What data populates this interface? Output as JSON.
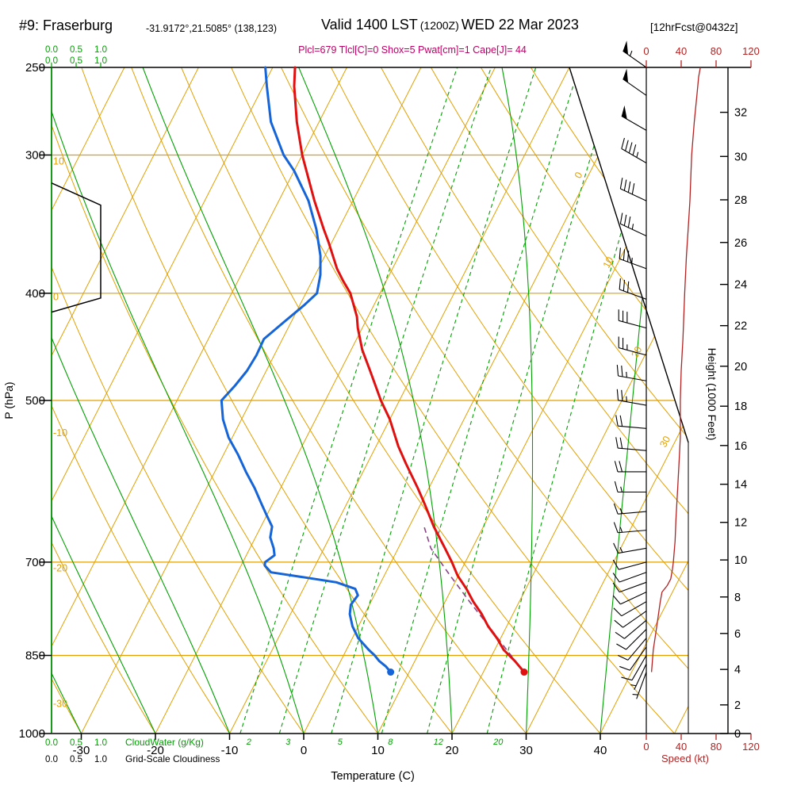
{
  "header": {
    "station": "#9: Fraserburg",
    "coords": "-31.9172°,21.5085° (138,123)",
    "valid_prefix": "Valid 1400 LST",
    "valid_z": "(1200Z)",
    "valid_date": "WED 22 Mar 2023",
    "fcst": "[12hrFcst@0432z]",
    "indices": "Plcl=679 Tlcl[C]=0 Shox=5 Pwat[cm]=1 Cape[J]= 44"
  },
  "colors": {
    "grid_orange": "#e2a000",
    "green": "#00a000",
    "temp_red": "#e01010",
    "dew_blue": "#1565d8",
    "parcel_purple": "#884488",
    "speed_red": "#b22222",
    "magenta": "#bb0066",
    "black": "#000000"
  },
  "axes": {
    "pressure": {
      "title": "P (hPa)",
      "ticks": [
        250,
        300,
        400,
        500,
        700,
        850,
        1000
      ]
    },
    "temperature": {
      "title": "Temperature (C)",
      "ticks": [
        -30,
        -20,
        -10,
        0,
        10,
        20,
        30,
        40
      ]
    },
    "height": {
      "title": "Height (1000 Feet)",
      "ticks": [
        0,
        2,
        4,
        6,
        8,
        10,
        12,
        14,
        16,
        18,
        20,
        22,
        24,
        26,
        28,
        30,
        32
      ]
    },
    "speed": {
      "title": "Speed (kt)",
      "ticks": [
        0,
        40,
        80,
        120
      ]
    },
    "cloudwater": {
      "title": "CloudWater (g/Kg)",
      "ticks": [
        "0.0",
        "0.5",
        "1.0"
      ]
    },
    "cloudiness": {
      "title": "Grid-Scale Cloudiness",
      "ticks": [
        "0.0",
        "0.5",
        "1.0"
      ]
    }
  },
  "grid": {
    "isotherms": {
      "min": -120,
      "max": 50,
      "step": 10,
      "right_labels": [
        0,
        10,
        20,
        30
      ]
    },
    "dry_adiabats": {
      "min": -30,
      "max": 130,
      "step": 10,
      "left_labels": [
        10,
        0,
        -10,
        -20,
        -30
      ]
    },
    "moist_adiabats": {
      "min": -30,
      "max": 40,
      "step": 10
    },
    "mixing_ratio_gkg": [
      2,
      3,
      5,
      8,
      12,
      20
    ]
  },
  "chart_data": {
    "type": "skewt_logp_sounding",
    "pressure_range_hpa": [
      1000,
      250
    ],
    "temperature_axis_range_c": [
      -30,
      40
    ],
    "temperature_profile_p_t": [
      [
        880,
        25.5
      ],
      [
        860,
        23.5
      ],
      [
        840,
        21.2
      ],
      [
        820,
        19.5
      ],
      [
        800,
        17.5
      ],
      [
        780,
        15.8
      ],
      [
        760,
        13.8
      ],
      [
        740,
        12.0
      ],
      [
        720,
        9.9
      ],
      [
        700,
        8.2
      ],
      [
        680,
        6.3
      ],
      [
        650,
        3.3
      ],
      [
        620,
        0.5
      ],
      [
        600,
        -1.5
      ],
      [
        570,
        -4.8
      ],
      [
        550,
        -7.0
      ],
      [
        520,
        -10.0
      ],
      [
        500,
        -12.5
      ],
      [
        470,
        -16.0
      ],
      [
        450,
        -18.5
      ],
      [
        430,
        -20.6
      ],
      [
        420,
        -21.5
      ],
      [
        400,
        -24.0
      ],
      [
        390,
        -25.8
      ],
      [
        380,
        -27.5
      ],
      [
        360,
        -30.4
      ],
      [
        350,
        -32.0
      ],
      [
        330,
        -35.2
      ],
      [
        300,
        -40.0
      ],
      [
        280,
        -43.0
      ],
      [
        260,
        -45.8
      ],
      [
        250,
        -47.0
      ]
    ],
    "dewpoint_profile_p_td": [
      [
        880,
        7.5
      ],
      [
        870,
        6.5
      ],
      [
        860,
        5.2
      ],
      [
        850,
        4.2
      ],
      [
        840,
        3.0
      ],
      [
        820,
        0.8
      ],
      [
        800,
        -0.8
      ],
      [
        780,
        -2.0
      ],
      [
        765,
        -2.5
      ],
      [
        750,
        -2.2
      ],
      [
        740,
        -3.0
      ],
      [
        730,
        -6.0
      ],
      [
        722,
        -11.0
      ],
      [
        715,
        -15.5
      ],
      [
        705,
        -16.8
      ],
      [
        700,
        -17.0
      ],
      [
        690,
        -16.2
      ],
      [
        680,
        -16.8
      ],
      [
        665,
        -18.0
      ],
      [
        650,
        -18.5
      ],
      [
        635,
        -20.0
      ],
      [
        620,
        -21.5
      ],
      [
        600,
        -23.5
      ],
      [
        580,
        -25.8
      ],
      [
        560,
        -28.0
      ],
      [
        540,
        -30.5
      ],
      [
        520,
        -32.5
      ],
      [
        500,
        -34.0
      ],
      [
        485,
        -33.2
      ],
      [
        470,
        -32.6
      ],
      [
        455,
        -32.4
      ],
      [
        440,
        -32.5
      ],
      [
        425,
        -31.0
      ],
      [
        410,
        -29.4
      ],
      [
        400,
        -28.5
      ],
      [
        385,
        -29.3
      ],
      [
        370,
        -30.6
      ],
      [
        350,
        -33.0
      ],
      [
        330,
        -36.0
      ],
      [
        310,
        -40.0
      ],
      [
        300,
        -42.5
      ],
      [
        280,
        -46.5
      ],
      [
        260,
        -49.5
      ],
      [
        250,
        -51.0
      ]
    ],
    "parcel_path_p_t": [
      [
        880,
        25.5
      ],
      [
        840,
        21.6
      ],
      [
        800,
        17.6
      ],
      [
        760,
        13.3
      ],
      [
        720,
        8.9
      ],
      [
        680,
        4.4
      ],
      [
        650,
        2.0
      ]
    ],
    "surface_temp_point": {
      "p": 880,
      "t": 25.5
    },
    "surface_dew_point": {
      "p": 880,
      "td": 7.5
    },
    "wind_barbs_p_dir_spd": [
      [
        250,
        305,
        55
      ],
      [
        265,
        305,
        50
      ],
      [
        285,
        300,
        50
      ],
      [
        305,
        300,
        45
      ],
      [
        330,
        295,
        40
      ],
      [
        355,
        295,
        35
      ],
      [
        380,
        290,
        35
      ],
      [
        405,
        290,
        30
      ],
      [
        430,
        285,
        30
      ],
      [
        455,
        285,
        25
      ],
      [
        480,
        280,
        25
      ],
      [
        505,
        280,
        25
      ],
      [
        530,
        275,
        20
      ],
      [
        555,
        275,
        20
      ],
      [
        580,
        270,
        20
      ],
      [
        605,
        270,
        15
      ],
      [
        630,
        265,
        15
      ],
      [
        655,
        265,
        15
      ],
      [
        680,
        260,
        15
      ],
      [
        700,
        255,
        10
      ],
      [
        715,
        250,
        10
      ],
      [
        730,
        250,
        10
      ],
      [
        745,
        245,
        10
      ],
      [
        760,
        240,
        10
      ],
      [
        775,
        235,
        10
      ],
      [
        790,
        230,
        10
      ],
      [
        805,
        225,
        10
      ],
      [
        820,
        220,
        10
      ],
      [
        835,
        215,
        10
      ],
      [
        850,
        210,
        10
      ],
      [
        865,
        205,
        5
      ],
      [
        880,
        200,
        5
      ]
    ],
    "speed_profile_p_kt": [
      [
        880,
        6
      ],
      [
        860,
        7
      ],
      [
        840,
        8
      ],
      [
        820,
        10
      ],
      [
        800,
        12
      ],
      [
        780,
        14
      ],
      [
        760,
        16
      ],
      [
        745,
        18
      ],
      [
        735,
        24
      ],
      [
        725,
        28
      ],
      [
        710,
        30
      ],
      [
        700,
        31
      ],
      [
        670,
        33
      ],
      [
        640,
        34
      ],
      [
        600,
        36
      ],
      [
        560,
        38
      ],
      [
        540,
        39
      ],
      [
        520,
        39
      ],
      [
        500,
        39
      ],
      [
        470,
        40
      ],
      [
        440,
        42
      ],
      [
        400,
        44
      ],
      [
        370,
        46
      ],
      [
        350,
        48
      ],
      [
        330,
        50
      ],
      [
        300,
        52
      ],
      [
        280,
        55
      ],
      [
        265,
        58
      ],
      [
        255,
        60
      ],
      [
        250,
        62
      ]
    ],
    "cloudiness_profile_p_frac": [
      [
        318,
        0
      ],
      [
        333,
        1
      ],
      [
        404,
        1
      ],
      [
        416,
        0
      ]
    ],
    "cloudwater_profile_p_gkg": [
      [
        250,
        0
      ],
      [
        1000,
        0
      ]
    ]
  }
}
